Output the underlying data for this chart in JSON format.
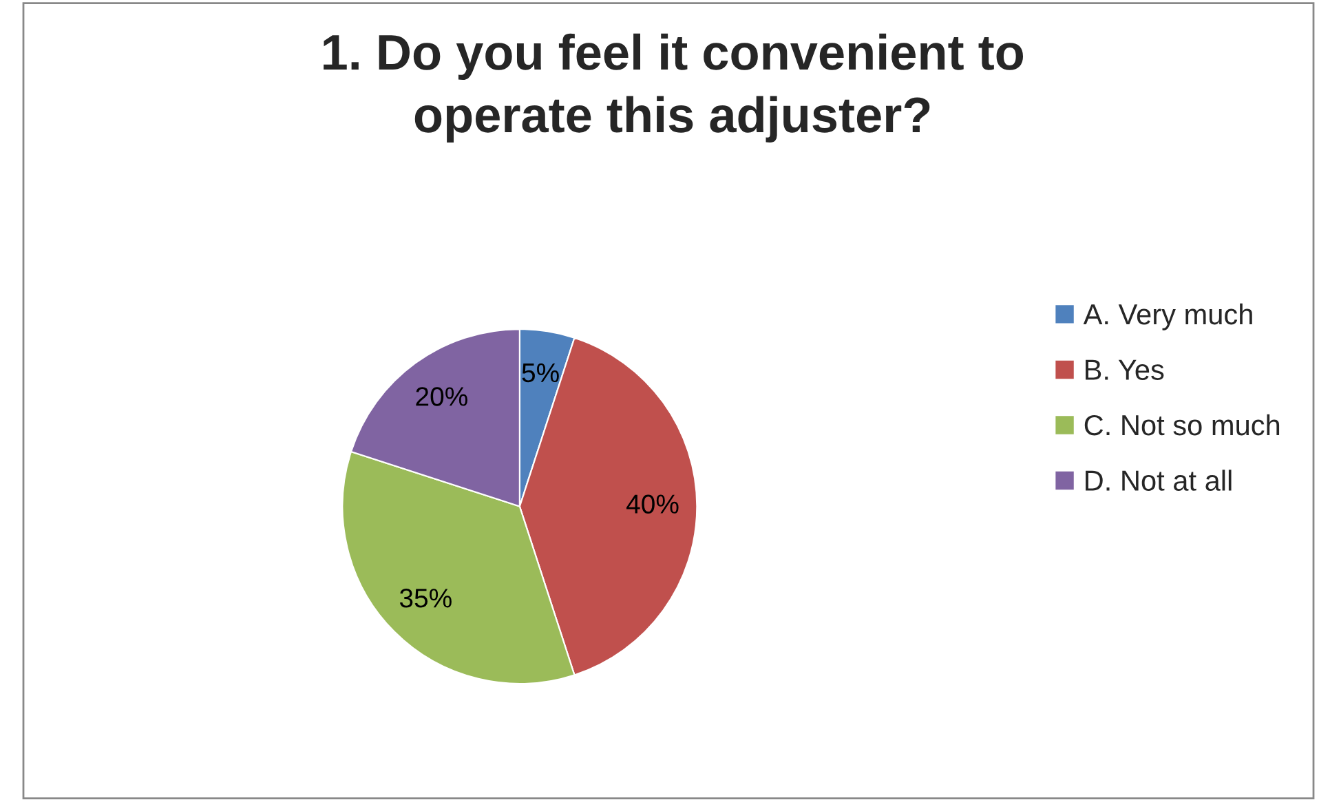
{
  "chart_data": {
    "type": "pie",
    "title": "1. Do you feel it convenient to\noperate this adjuster?",
    "categories": [
      "A. Very much",
      "B. Yes",
      "C. Not so much",
      "D. Not at all"
    ],
    "values": [
      5,
      40,
      35,
      20
    ],
    "colors": [
      "#4f81bd",
      "#c0504d",
      "#9bbb59",
      "#8064a2"
    ],
    "value_labels": [
      "5%",
      "40%",
      "35%",
      "20%"
    ],
    "legend": "right"
  }
}
